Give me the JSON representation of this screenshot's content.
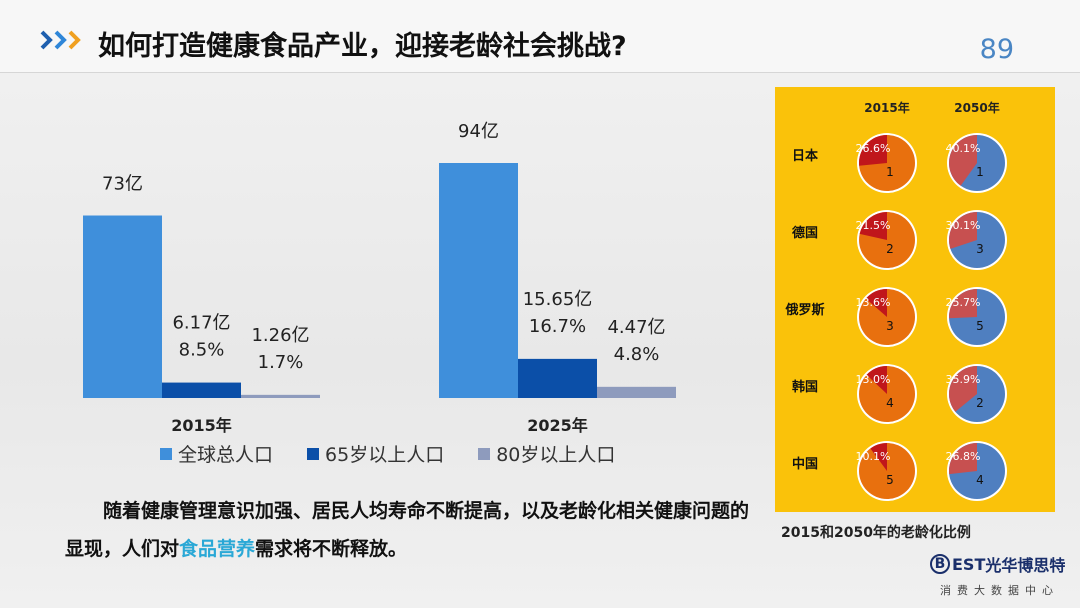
{
  "header": {
    "title": "如何打造健康食品产业，迎接老龄社会挑战?",
    "page_number": "89"
  },
  "colors": {
    "total": "#3f8fdb",
    "age65": "#0b4fa8",
    "age80": "#8e9bbd",
    "panel_bg": "#fac20a",
    "pie_orange": "#e8700e",
    "pie_blue": "#4f7fc0",
    "pie_red_dark": "#c0161b",
    "pie_red_light": "#c75050",
    "highlight": "#2aa8d6"
  },
  "legend": {
    "total": "全球总人口",
    "age65": "65岁以上人口",
    "age80": "80岁以上人口"
  },
  "chart_data": [
    {
      "type": "bar",
      "categories": [
        "2015年",
        "2025年"
      ],
      "series": [
        {
          "name": "全球总人口",
          "values": [
            73,
            94
          ],
          "labels": [
            "73亿",
            "94亿"
          ],
          "sublabels": [
            "",
            ""
          ]
        },
        {
          "name": "65岁以上人口",
          "values": [
            6.17,
            15.65
          ],
          "labels": [
            "6.17亿",
            "15.65亿"
          ],
          "sublabels": [
            "8.5%",
            "16.7%"
          ]
        },
        {
          "name": "80岁以上人口",
          "values": [
            1.26,
            4.47
          ],
          "labels": [
            "1.26亿",
            "4.47亿"
          ],
          "sublabels": [
            "1.7%",
            "4.8%"
          ]
        }
      ],
      "ylim": [
        0,
        94
      ]
    },
    {
      "type": "pie",
      "title": "2015和2050年的老龄化比例",
      "years": [
        "2015年",
        "2050年"
      ],
      "countries": [
        {
          "name": "日本",
          "values": [
            26.6,
            40.1
          ],
          "labels": [
            "26.6%",
            "40.1%"
          ],
          "ranks": [
            "1",
            "1"
          ]
        },
        {
          "name": "德国",
          "values": [
            21.5,
            30.1
          ],
          "labels": [
            "21.5%",
            "30.1%"
          ],
          "ranks": [
            "2",
            "3"
          ]
        },
        {
          "name": "俄罗斯",
          "values": [
            13.6,
            25.7
          ],
          "labels": [
            "13.6%",
            "25.7%"
          ],
          "ranks": [
            "3",
            "5"
          ]
        },
        {
          "name": "韩国",
          "values": [
            13.0,
            35.9
          ],
          "labels": [
            "13.0%",
            "35.9%"
          ],
          "ranks": [
            "4",
            "2"
          ]
        },
        {
          "name": "中国",
          "values": [
            10.1,
            26.8
          ],
          "labels": [
            "10.1%",
            "26.8%"
          ],
          "ranks": [
            "5",
            "4"
          ]
        }
      ]
    }
  ],
  "body": {
    "text_before": "随着健康管理意识加强、居民人均寿命不断提高，以及老龄化相关健康问题的显现，人们对",
    "text_highlight": "食品营养",
    "text_after": "需求将不断释放。"
  },
  "brand": {
    "logo_letter": "B",
    "name_latin": "EST",
    "name_cn": "光华博思特",
    "subtitle": "消费大数据中心"
  }
}
